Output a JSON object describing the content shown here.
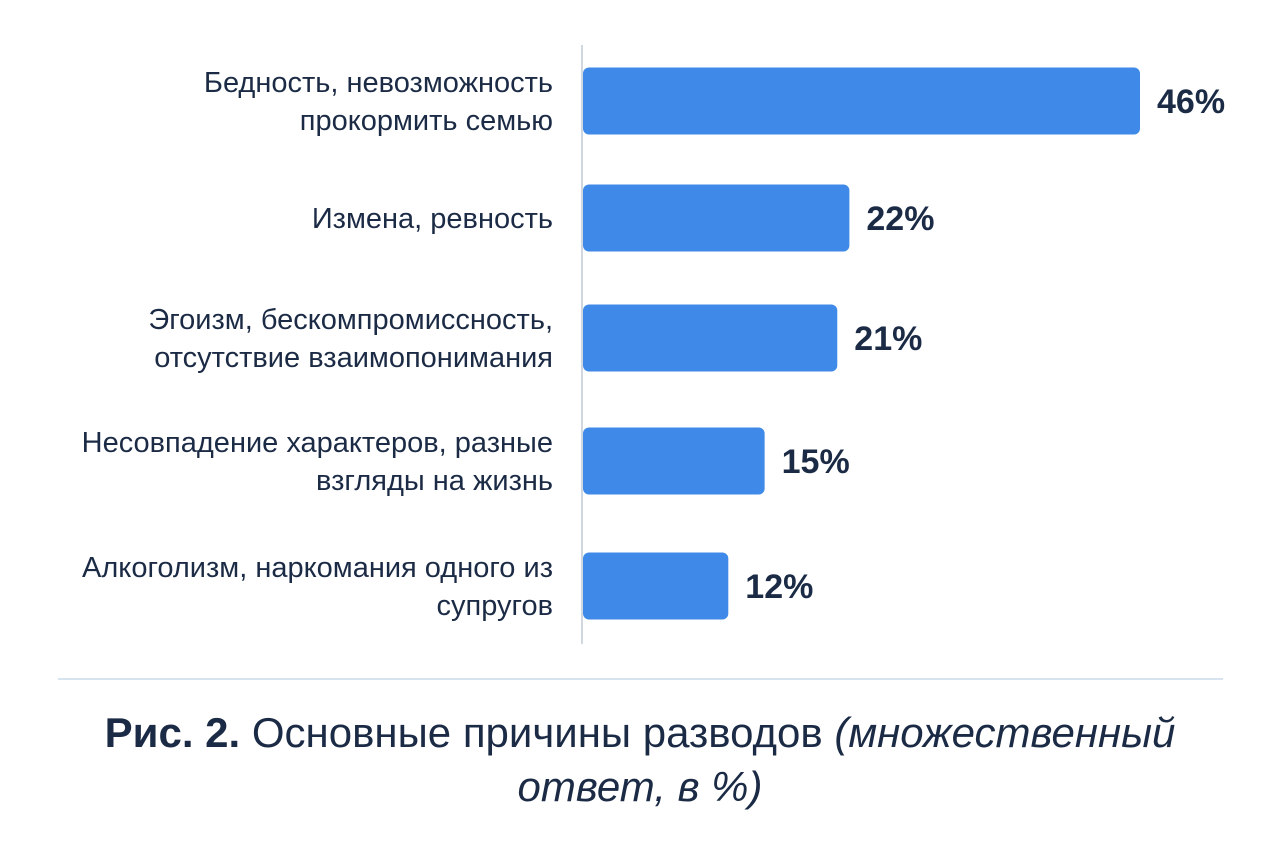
{
  "chart_data": {
    "type": "bar",
    "orientation": "horizontal",
    "categories": [
      [
        "Бедность, невозможность",
        "прокормить семью"
      ],
      [
        "Измена, ревность"
      ],
      [
        "Эгоизм, бескомпромиссность,",
        "отсутствие взаимопонимания"
      ],
      [
        "Несовпадение характеров, разные",
        "взгляды на жизнь"
      ],
      [
        "Алкоголизм, наркомания одного из",
        "супругов"
      ]
    ],
    "values": [
      46,
      22,
      21,
      15,
      12
    ],
    "value_labels": [
      "46%",
      "22%",
      "21%",
      "15%",
      "12%"
    ],
    "unit": "%",
    "xlim": [
      0,
      46
    ],
    "grid": false,
    "legend": "none",
    "bar_color": "#3f8ae8",
    "text_color": "#1c2b45",
    "axis_color": "#d0d7e0"
  },
  "caption": {
    "figure_number": "Рис. 2.",
    "title": "Основные причины разводов",
    "note": "(множественный ответ, в %)"
  }
}
